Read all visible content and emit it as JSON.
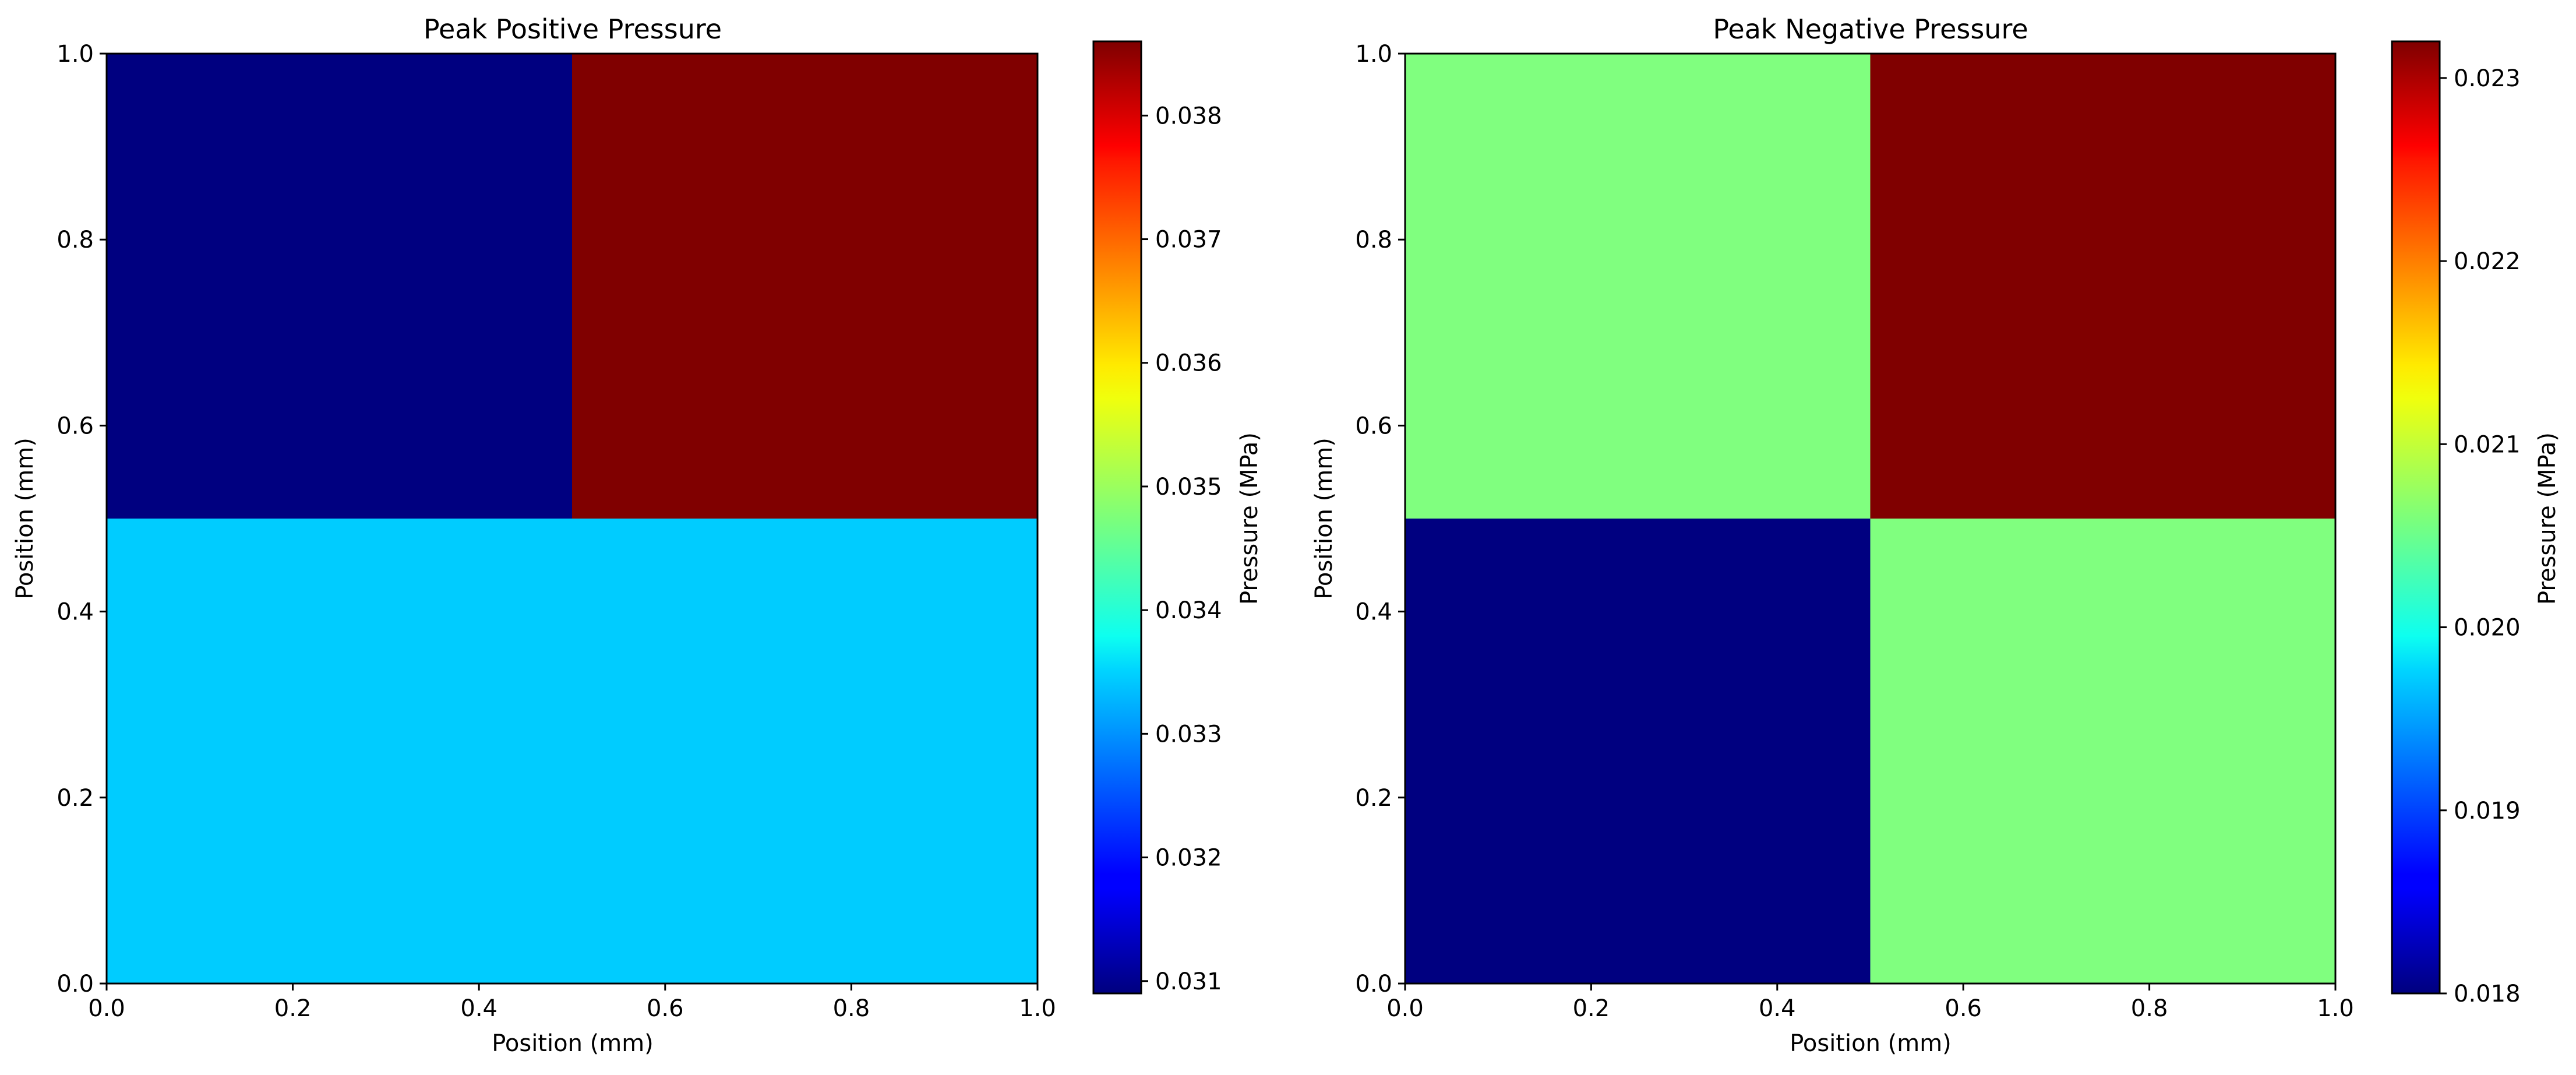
{
  "chart_data": [
    {
      "type": "heatmap",
      "title": "Peak Positive Pressure",
      "xlabel": "Position (mm)",
      "ylabel": "Position (mm)",
      "xlim": [
        0.0,
        1.0
      ],
      "ylim": [
        0.0,
        1.0
      ],
      "x_ticks": [
        "0.0",
        "0.2",
        "0.4",
        "0.6",
        "0.8",
        "1.0"
      ],
      "y_ticks": [
        "0.0",
        "0.2",
        "0.4",
        "0.6",
        "0.8",
        "1.0"
      ],
      "x_edges": [
        0.0,
        0.5,
        1.0
      ],
      "y_edges": [
        0.0,
        0.5,
        1.0
      ],
      "grid": false,
      "colormap": "jet",
      "cells": [
        {
          "x": [
            0.0,
            0.5
          ],
          "y": [
            0.0,
            0.5
          ],
          "value": 0.0334
        },
        {
          "x": [
            0.5,
            1.0
          ],
          "y": [
            0.0,
            0.5
          ],
          "value": 0.0334
        },
        {
          "x": [
            0.0,
            0.5
          ],
          "y": [
            0.5,
            1.0
          ],
          "value": 0.0309
        },
        {
          "x": [
            0.5,
            1.0
          ],
          "y": [
            0.5,
            1.0
          ],
          "value": 0.0386
        }
      ],
      "colorbar": {
        "label": "Pressure (MPa)",
        "vmin": 0.0309,
        "vmax": 0.0386,
        "ticks": [
          0.031,
          0.032,
          0.033,
          0.034,
          0.035,
          0.036,
          0.037,
          0.038
        ],
        "tick_labels": [
          "0.031",
          "0.032",
          "0.033",
          "0.034",
          "0.035",
          "0.036",
          "0.037",
          "0.038"
        ]
      }
    },
    {
      "type": "heatmap",
      "title": "Peak Negative Pressure",
      "xlabel": "Position (mm)",
      "ylabel": "Position (mm)",
      "xlim": [
        0.0,
        1.0
      ],
      "ylim": [
        0.0,
        1.0
      ],
      "x_ticks": [
        "0.0",
        "0.2",
        "0.4",
        "0.6",
        "0.8",
        "1.0"
      ],
      "y_ticks": [
        "0.0",
        "0.2",
        "0.4",
        "0.6",
        "0.8",
        "1.0"
      ],
      "x_edges": [
        0.0,
        0.5,
        1.0
      ],
      "y_edges": [
        0.0,
        0.5,
        1.0
      ],
      "grid": false,
      "colormap": "jet",
      "cells": [
        {
          "x": [
            0.0,
            0.5
          ],
          "y": [
            0.0,
            0.5
          ],
          "value": 0.018
        },
        {
          "x": [
            0.5,
            1.0
          ],
          "y": [
            0.0,
            0.5
          ],
          "value": 0.0206
        },
        {
          "x": [
            0.0,
            0.5
          ],
          "y": [
            0.5,
            1.0
          ],
          "value": 0.0206
        },
        {
          "x": [
            0.5,
            1.0
          ],
          "y": [
            0.5,
            1.0
          ],
          "value": 0.0232
        }
      ],
      "colorbar": {
        "label": "Pressure (MPa)",
        "vmin": 0.018,
        "vmax": 0.0232,
        "ticks": [
          0.018,
          0.019,
          0.02,
          0.021,
          0.022,
          0.023
        ],
        "tick_labels": [
          "0.018",
          "0.019",
          "0.020",
          "0.021",
          "0.022",
          "0.023"
        ]
      }
    }
  ]
}
